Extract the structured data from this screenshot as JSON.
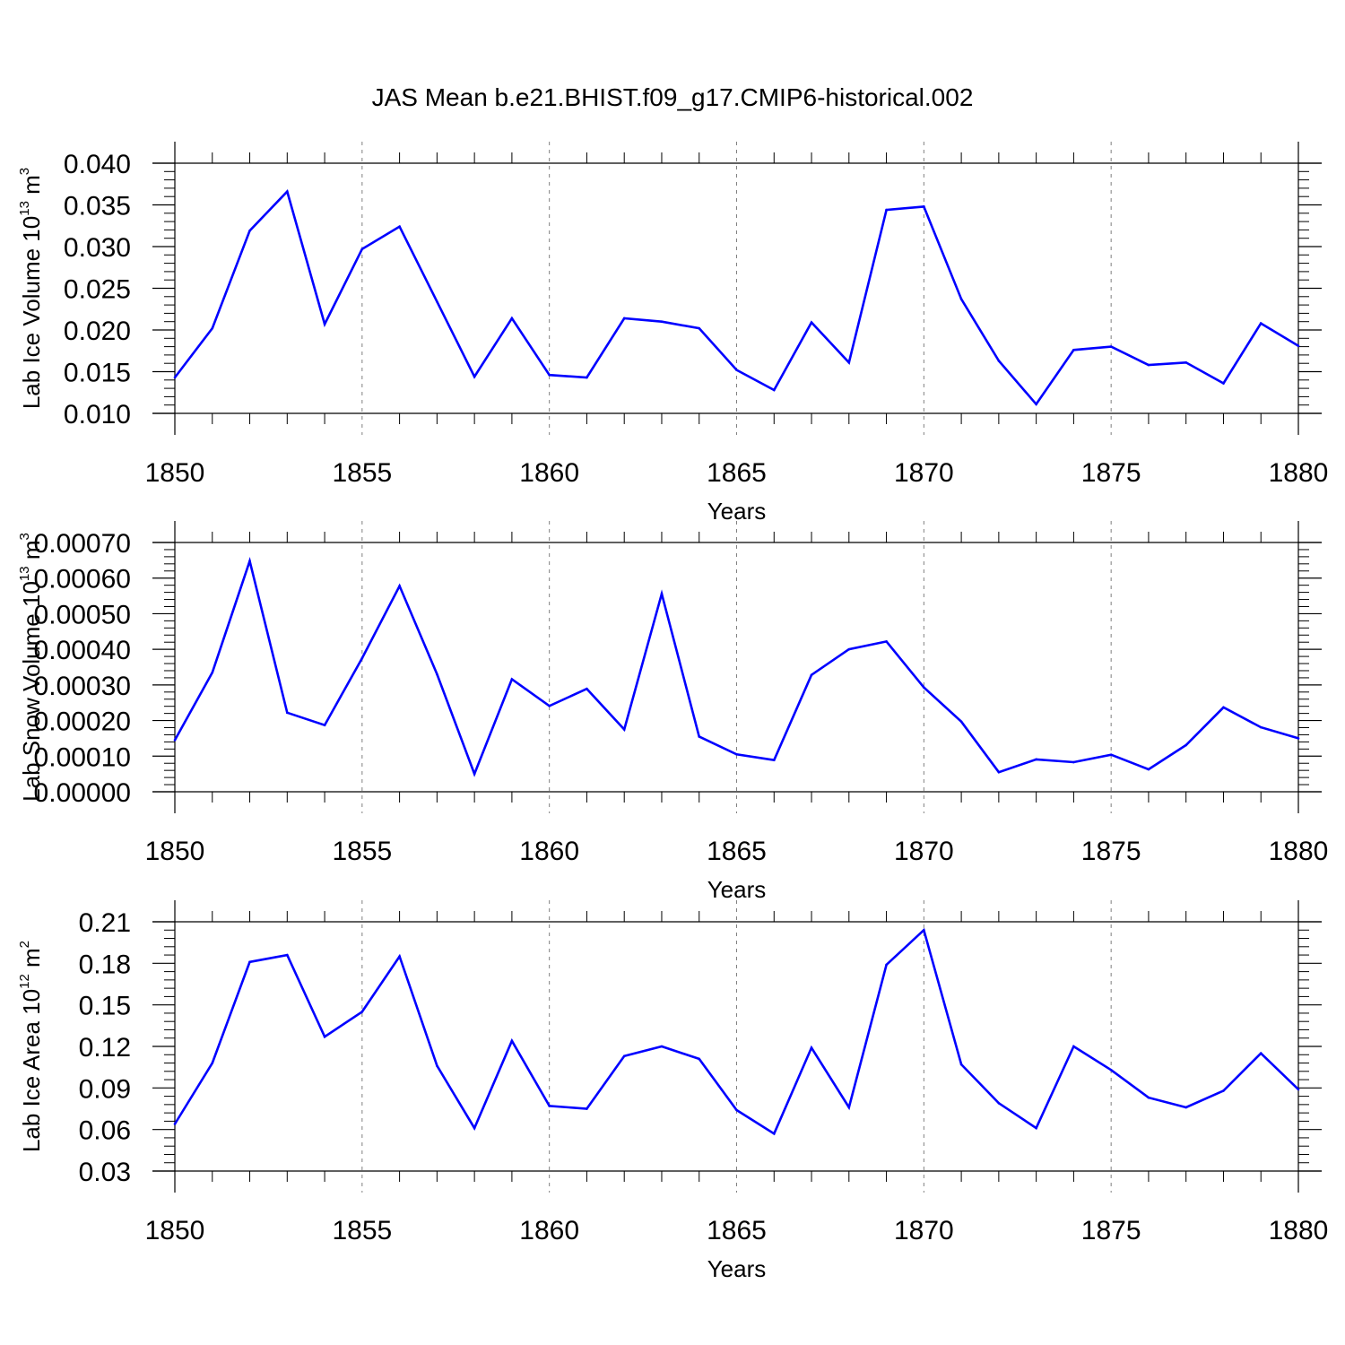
{
  "colors": {
    "series": "#0000ff",
    "axis": "#000000",
    "grid": "#808080",
    "background": "#ffffff"
  },
  "chart_data": [
    {
      "type": "line",
      "title": "JAS Mean b.e21.BHIST.f09_g17.CMIP6-historical.002",
      "xlabel": "Years",
      "ylabel": {
        "main": "Lab Ice Volume 10",
        "exp": "13",
        "unit": " m",
        "unit_exp": "3"
      },
      "xlim": [
        1850,
        1880
      ],
      "ylim": [
        0.01,
        0.04
      ],
      "x_ticks": [
        1850,
        1855,
        1860,
        1865,
        1870,
        1875,
        1880
      ],
      "x_tick_labels": [
        "1850",
        "1855",
        "1860",
        "1865",
        "1870",
        "1875",
        "1880"
      ],
      "y_ticks": [
        0.01,
        0.015,
        0.02,
        0.025,
        0.03,
        0.035,
        0.04
      ],
      "y_tick_labels": [
        "0.010",
        "0.015",
        "0.020",
        "0.025",
        "0.030",
        "0.035",
        "0.040"
      ],
      "grid": "vertical dashed at major x ticks",
      "x": [
        1850,
        1851,
        1852,
        1853,
        1854,
        1855,
        1856,
        1857,
        1858,
        1859,
        1860,
        1861,
        1862,
        1863,
        1864,
        1865,
        1866,
        1867,
        1868,
        1869,
        1870,
        1871,
        1872,
        1873,
        1874,
        1875,
        1876,
        1877,
        1878,
        1879,
        1880
      ],
      "values": [
        0.0143,
        0.0202,
        0.0319,
        0.0366,
        0.0207,
        0.0297,
        0.0324,
        0.0234,
        0.0144,
        0.0214,
        0.0146,
        0.0143,
        0.0214,
        0.021,
        0.0202,
        0.0152,
        0.0128,
        0.0209,
        0.0161,
        0.0344,
        0.0348,
        0.0237,
        0.0163,
        0.0111,
        0.0176,
        0.018,
        0.0158,
        0.0161,
        0.0136,
        0.0208,
        0.0181
      ]
    },
    {
      "type": "line",
      "title": "",
      "xlabel": "Years",
      "ylabel": {
        "main": "Lab Snow Volume 10",
        "exp": "13",
        "unit": " m",
        "unit_exp": "3"
      },
      "xlim": [
        1850,
        1880
      ],
      "ylim": [
        0.0,
        0.0007
      ],
      "x_ticks": [
        1850,
        1855,
        1860,
        1865,
        1870,
        1875,
        1880
      ],
      "x_tick_labels": [
        "1850",
        "1855",
        "1860",
        "1865",
        "1870",
        "1875",
        "1880"
      ],
      "y_ticks": [
        0.0,
        0.0001,
        0.0002,
        0.0003,
        0.0004,
        0.0005,
        0.0006,
        0.0007
      ],
      "y_tick_labels": [
        "0.00000",
        "0.00010",
        "0.00020",
        "0.00030",
        "0.00040",
        "0.00050",
        "0.00060",
        "0.00070"
      ],
      "grid": "vertical dashed at major x ticks",
      "x": [
        1850,
        1851,
        1852,
        1853,
        1854,
        1855,
        1856,
        1857,
        1858,
        1859,
        1860,
        1861,
        1862,
        1863,
        1864,
        1865,
        1866,
        1867,
        1868,
        1869,
        1870,
        1871,
        1872,
        1873,
        1874,
        1875,
        1876,
        1877,
        1878,
        1879,
        1880
      ],
      "values": [
        0.000145,
        0.000335,
        0.000648,
        0.000222,
        0.000187,
        0.000375,
        0.000578,
        0.00033,
        5e-05,
        0.000316,
        0.000241,
        0.000289,
        0.000175,
        0.000556,
        0.000155,
        0.000105,
        8.9e-05,
        0.000328,
        0.0004,
        0.000422,
        0.000293,
        0.000197,
        5.5e-05,
        9.1e-05,
        8.3e-05,
        0.000104,
        6.3e-05,
        0.000131,
        0.000237,
        0.000181,
        0.00015
      ]
    },
    {
      "type": "line",
      "title": "",
      "xlabel": "Years",
      "ylabel": {
        "main": "Lab Ice Area 10",
        "exp": "12",
        "unit": " m",
        "unit_exp": "2"
      },
      "xlim": [
        1850,
        1880
      ],
      "ylim": [
        0.03,
        0.21
      ],
      "x_ticks": [
        1850,
        1855,
        1860,
        1865,
        1870,
        1875,
        1880
      ],
      "x_tick_labels": [
        "1850",
        "1855",
        "1860",
        "1865",
        "1870",
        "1875",
        "1880"
      ],
      "y_ticks": [
        0.03,
        0.06,
        0.09,
        0.12,
        0.15,
        0.18,
        0.21
      ],
      "y_tick_labels": [
        "0.03",
        "0.06",
        "0.09",
        "0.12",
        "0.15",
        "0.18",
        "0.21"
      ],
      "grid": "vertical dashed at major x ticks",
      "x": [
        1850,
        1851,
        1852,
        1853,
        1854,
        1855,
        1856,
        1857,
        1858,
        1859,
        1860,
        1861,
        1862,
        1863,
        1864,
        1865,
        1866,
        1867,
        1868,
        1869,
        1870,
        1871,
        1872,
        1873,
        1874,
        1875,
        1876,
        1877,
        1878,
        1879,
        1880
      ],
      "values": [
        0.064,
        0.108,
        0.181,
        0.186,
        0.127,
        0.145,
        0.185,
        0.106,
        0.061,
        0.124,
        0.077,
        0.075,
        0.113,
        0.12,
        0.111,
        0.074,
        0.057,
        0.119,
        0.076,
        0.179,
        0.204,
        0.107,
        0.079,
        0.061,
        0.12,
        0.103,
        0.083,
        0.076,
        0.088,
        0.115,
        0.089
      ]
    }
  ]
}
